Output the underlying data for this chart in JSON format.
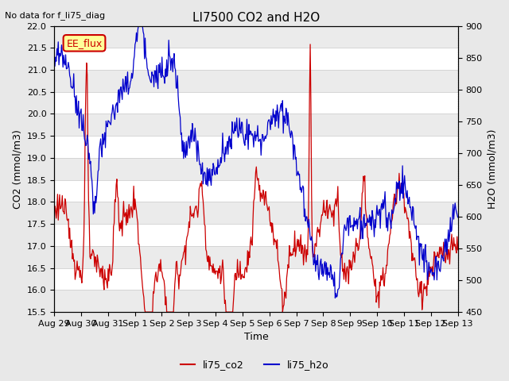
{
  "title": "LI7500 CO2 and H2O",
  "suptitle": "No data for f_li75_diag",
  "xlabel": "Time",
  "ylabel_left": "CO2 (mmol/m3)",
  "ylabel_right": "H2O (mmol/m3)",
  "ylim_left": [
    15.5,
    22.0
  ],
  "ylim_right": [
    450,
    900
  ],
  "legend_labels": [
    "li75_co2",
    "li75_h2o"
  ],
  "legend_colors": [
    "#cc0000",
    "#0000cc"
  ],
  "co2_color": "#cc0000",
  "h2o_color": "#0000cc",
  "annotation_label": "EE_flux",
  "annotation_color": "#cc0000",
  "annotation_bg": "#ffff99",
  "bg_color": "#e8e8e8",
  "plot_bg": "#ffffff",
  "grid_color": "#d0d0d0",
  "xtick_labels": [
    "Aug 29",
    "Aug 30",
    "Aug 31",
    "Sep 1",
    "Sep 2",
    "Sep 3",
    "Sep 4",
    "Sep 5",
    "Sep 6",
    "Sep 7",
    "Sep 8",
    "Sep 9",
    "Sep 10",
    "Sep 11",
    "Sep 12",
    "Sep 13"
  ],
  "n_points": 600
}
